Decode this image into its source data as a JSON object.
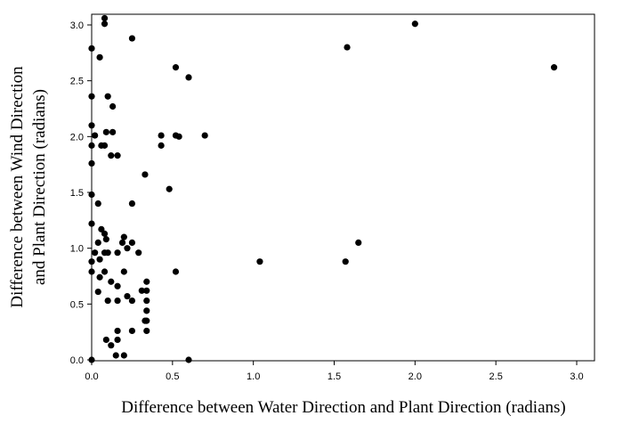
{
  "chart_data": {
    "type": "scatter",
    "xlabel": "Difference between Water Direction and Plant Direction (radians)",
    "ylabel_line1": "Difference between Wind Direction",
    "ylabel_line2": "and Plant Direction (radians)",
    "xlim": [
      0,
      3.15
    ],
    "ylim": [
      0,
      3.1
    ],
    "xticks": [
      "0.0",
      "0.5",
      "1.0",
      "1.5",
      "2.0",
      "2.5",
      "3.0"
    ],
    "yticks": [
      "0.0",
      "0.5",
      "1.0",
      "1.5",
      "2.0",
      "2.5",
      "3.0"
    ],
    "grid": false,
    "legend": false,
    "marker_color": "#000000",
    "points": [
      [
        0.0,
        2.79
      ],
      [
        0.0,
        2.36
      ],
      [
        0.0,
        2.1
      ],
      [
        0.0,
        1.92
      ],
      [
        0.0,
        1.76
      ],
      [
        0.0,
        1.48
      ],
      [
        0.0,
        1.22
      ],
      [
        0.0,
        0.88
      ],
      [
        0.0,
        0.79
      ],
      [
        0.0,
        0.0
      ],
      [
        0.02,
        2.01
      ],
      [
        0.02,
        0.96
      ],
      [
        0.04,
        1.4
      ],
      [
        0.04,
        1.05
      ],
      [
        0.04,
        0.61
      ],
      [
        0.05,
        2.71
      ],
      [
        0.05,
        0.74
      ],
      [
        0.05,
        0.9
      ],
      [
        0.06,
        1.92
      ],
      [
        0.06,
        1.17
      ],
      [
        0.08,
        3.06
      ],
      [
        0.08,
        3.01
      ],
      [
        0.08,
        1.92
      ],
      [
        0.08,
        1.13
      ],
      [
        0.08,
        0.96
      ],
      [
        0.08,
        0.79
      ],
      [
        0.09,
        2.04
      ],
      [
        0.09,
        1.08
      ],
      [
        0.09,
        0.18
      ],
      [
        0.1,
        2.36
      ],
      [
        0.1,
        0.96
      ],
      [
        0.1,
        0.53
      ],
      [
        0.12,
        1.83
      ],
      [
        0.12,
        0.7
      ],
      [
        0.12,
        0.13
      ],
      [
        0.13,
        2.27
      ],
      [
        0.13,
        2.04
      ],
      [
        0.15,
        0.04
      ],
      [
        0.16,
        1.83
      ],
      [
        0.16,
        0.96
      ],
      [
        0.16,
        0.66
      ],
      [
        0.16,
        0.53
      ],
      [
        0.16,
        0.26
      ],
      [
        0.16,
        0.18
      ],
      [
        0.19,
        1.05
      ],
      [
        0.2,
        1.1
      ],
      [
        0.2,
        0.79
      ],
      [
        0.2,
        0.04
      ],
      [
        0.22,
        1.0
      ],
      [
        0.22,
        0.57
      ],
      [
        0.25,
        2.88
      ],
      [
        0.25,
        1.4
      ],
      [
        0.25,
        1.05
      ],
      [
        0.25,
        0.53
      ],
      [
        0.25,
        0.26
      ],
      [
        0.29,
        0.96
      ],
      [
        0.31,
        0.62
      ],
      [
        0.33,
        0.35
      ],
      [
        0.33,
        1.66
      ],
      [
        0.34,
        0.7
      ],
      [
        0.34,
        0.62
      ],
      [
        0.34,
        0.53
      ],
      [
        0.34,
        0.44
      ],
      [
        0.34,
        0.35
      ],
      [
        0.34,
        0.26
      ],
      [
        0.43,
        2.01
      ],
      [
        0.43,
        1.92
      ],
      [
        0.48,
        1.53
      ],
      [
        0.52,
        2.62
      ],
      [
        0.52,
        2.01
      ],
      [
        0.52,
        0.79
      ],
      [
        0.54,
        2.0
      ],
      [
        0.6,
        2.53
      ],
      [
        0.6,
        0.0
      ],
      [
        0.7,
        2.01
      ],
      [
        1.04,
        0.88
      ],
      [
        1.57,
        0.88
      ],
      [
        1.58,
        2.8
      ],
      [
        1.65,
        1.05
      ],
      [
        2.0,
        3.01
      ],
      [
        2.86,
        2.62
      ]
    ]
  }
}
